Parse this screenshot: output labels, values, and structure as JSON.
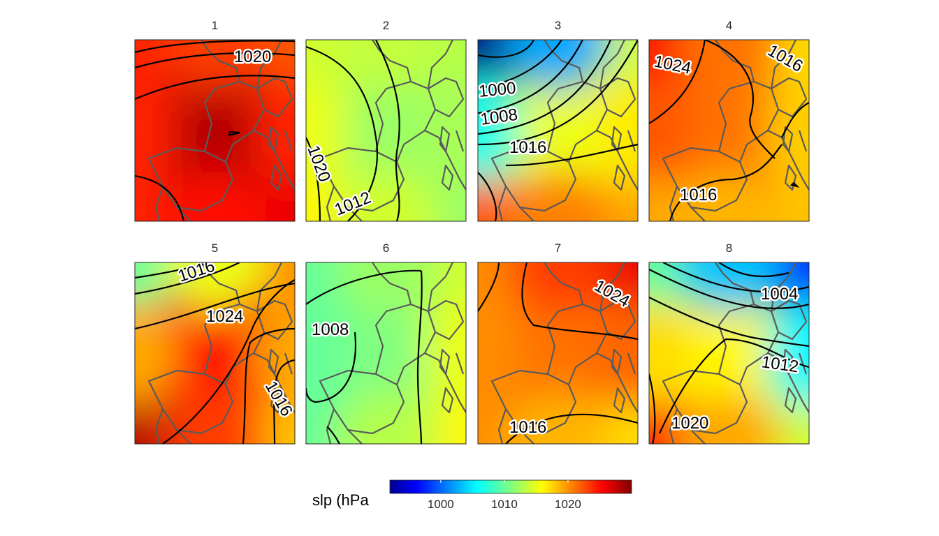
{
  "chart_data": {
    "type": "heatmap",
    "field": "sea level pressure",
    "units": "hPa",
    "colormap": "jet",
    "clim": [
      992,
      1030
    ],
    "contour_interval": 4,
    "colorbar": {
      "title": "slp (hPa",
      "ticks": [
        1000,
        1010,
        1020
      ],
      "tick_labels": [
        "1000",
        "1010",
        "1020"
      ]
    },
    "panels": [
      {
        "title": "1",
        "contour_labels": [
          "1020"
        ],
        "center_value": 1028,
        "corner_values": {
          "nw": 1024,
          "ne": 1022,
          "sw": 1024,
          "se": 1026
        }
      },
      {
        "title": "2",
        "contour_labels": [
          "1020",
          "1012"
        ],
        "center_value": 1012,
        "corner_values": {
          "nw": 1014,
          "ne": 1013,
          "sw": 1016,
          "se": 1012
        }
      },
      {
        "title": "3",
        "contour_labels": [
          "1000",
          "1008",
          "1016"
        ],
        "center_value": 1015,
        "corner_values": {
          "nw": 992,
          "ne": 1014,
          "sw": 1022,
          "se": 1019
        }
      },
      {
        "title": "4",
        "contour_labels": [
          "1024",
          "1016",
          "1016"
        ],
        "center_value": 1021,
        "corner_values": {
          "nw": 1025,
          "ne": 1017,
          "sw": 1019,
          "se": 1018
        }
      },
      {
        "title": "5",
        "contour_labels": [
          "1016",
          "1024",
          "1016"
        ],
        "center_value": 1025,
        "corner_values": {
          "nw": 1010,
          "ne": 1020,
          "sw": 1028,
          "se": 1018
        }
      },
      {
        "title": "6",
        "contour_labels": [
          "1008"
        ],
        "center_value": 1011,
        "corner_values": {
          "nw": 1010,
          "ne": 1014,
          "sw": 1010,
          "se": 1016
        }
      },
      {
        "title": "7",
        "contour_labels": [
          "1024",
          "1016"
        ],
        "center_value": 1021,
        "corner_values": {
          "nw": 1020,
          "ne": 1026,
          "sw": 1020,
          "se": 1017
        }
      },
      {
        "title": "8",
        "contour_labels": [
          "1004",
          "1012",
          "1020"
        ],
        "center_value": 1016,
        "corner_values": {
          "nw": 1010,
          "ne": 998,
          "sw": 1024,
          "se": 1014
        }
      }
    ]
  }
}
